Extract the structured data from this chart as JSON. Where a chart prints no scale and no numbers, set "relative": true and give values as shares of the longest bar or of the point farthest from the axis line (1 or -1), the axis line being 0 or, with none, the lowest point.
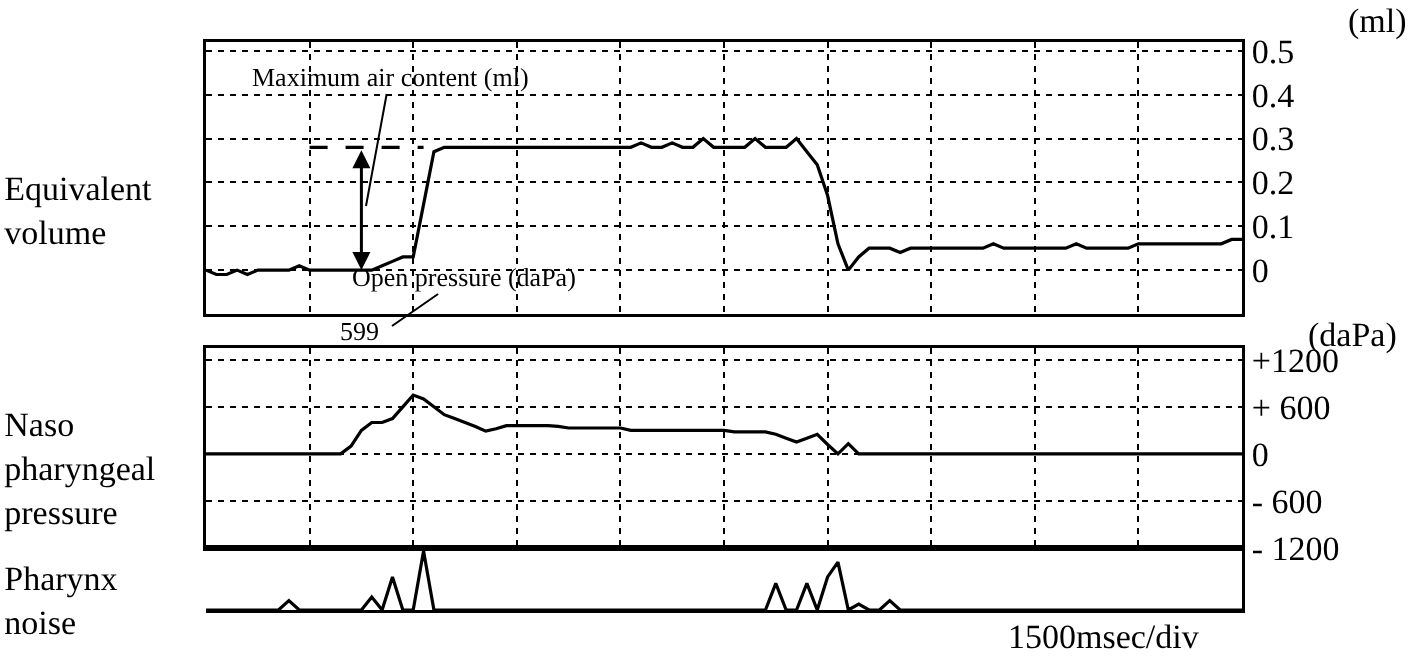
{
  "chart_data": [
    {
      "type": "line",
      "title": "Equivalent volume",
      "ylabel": "(ml)",
      "categories": [
        null,
        null,
        null,
        null,
        null,
        null,
        null,
        null,
        null,
        null,
        null,
        null,
        null,
        null,
        null,
        null,
        null,
        null,
        null,
        null,
        null,
        null,
        null,
        null,
        null,
        null,
        null,
        null,
        null,
        null,
        null,
        null,
        null,
        null,
        null,
        null,
        null,
        null,
        null,
        null,
        null,
        null,
        null,
        null,
        null,
        null,
        null,
        null,
        null,
        null,
        null,
        null,
        null,
        null,
        null,
        null,
        null,
        null,
        null,
        null,
        null,
        null,
        null,
        null,
        null,
        null,
        null,
        null,
        null,
        null,
        null,
        null,
        null,
        null,
        null,
        null,
        null,
        null,
        null,
        null,
        null,
        null,
        null,
        null,
        null,
        null,
        null,
        null,
        null,
        null,
        null,
        null,
        null,
        null,
        null,
        null,
        null,
        null,
        null,
        null,
        null
      ],
      "series": [
        {
          "color": "#000000",
          "values": [
            0,
            -0.01,
            -0.01,
            0,
            -0.01,
            0,
            0,
            0,
            0,
            0.01,
            0,
            0,
            0,
            0,
            0,
            0,
            0,
            0.01,
            0.02,
            0.03,
            0.03,
            0.15,
            0.27,
            0.28,
            0.28,
            0.28,
            0.28,
            0.28,
            0.28,
            0.28,
            0.28,
            0.28,
            0.28,
            0.28,
            0.28,
            0.28,
            0.28,
            0.28,
            0.28,
            0.28,
            0.28,
            0.28,
            0.29,
            0.28,
            0.28,
            0.29,
            0.28,
            0.28,
            0.3,
            0.28,
            0.28,
            0.28,
            0.28,
            0.3,
            0.28,
            0.28,
            0.28,
            0.3,
            0.27,
            0.24,
            0.17,
            0.06,
            0,
            0.03,
            0.05,
            0.05,
            0.05,
            0.04,
            0.05,
            0.05,
            0.05,
            0.05,
            0.05,
            0.05,
            0.05,
            0.05,
            0.06,
            0.05,
            0.05,
            0.05,
            0.05,
            0.05,
            0.05,
            0.05,
            0.06,
            0.05,
            0.05,
            0.05,
            0.05,
            0.05,
            0.06,
            0.06,
            0.06,
            0.06,
            0.06,
            0.06,
            0.06,
            0.06,
            0.06,
            0.07,
            0.07
          ]
        },
        {
          "type": "line",
          "color": "#000000",
          "line_style": "dashed",
          "values": [
            null,
            null,
            null,
            null,
            null,
            null,
            null,
            null,
            null,
            null,
            0.28,
            0.28,
            0.28,
            0.28,
            0.28,
            0.28,
            0.28,
            0.28,
            0.28,
            0.28,
            0.28,
            0.28,
            null,
            null,
            null,
            null,
            null,
            null,
            null,
            null,
            null,
            null,
            null,
            null,
            null,
            null,
            null,
            null,
            null,
            null,
            null,
            null,
            null,
            null,
            null,
            null,
            null,
            null,
            null,
            null,
            null,
            null,
            null,
            null,
            null,
            null,
            null,
            null,
            null,
            null,
            null,
            null,
            null,
            null,
            null,
            null,
            null,
            null,
            null,
            null,
            null,
            null,
            null,
            null,
            null,
            null,
            null,
            null,
            null,
            null,
            null,
            null,
            null,
            null,
            null,
            null,
            null,
            null,
            null,
            null,
            null,
            null,
            null,
            null,
            null,
            null,
            null,
            null,
            null,
            null,
            null
          ]
        }
      ],
      "ylim": [
        -0.1,
        0.52
      ],
      "yticks": [
        0,
        0.1,
        0.2,
        0.3,
        0.4,
        0.5
      ],
      "grid": true,
      "tick_labels": "y",
      "annotations": [
        "Maximum air content (ml)",
        "Open pressure (daPa)"
      ]
    },
    {
      "type": "line",
      "title": "Naso pharyngeal pressure",
      "ylabel": "(daPa)",
      "categories": [
        null,
        null,
        null,
        null,
        null,
        null,
        null,
        null,
        null,
        null,
        null,
        null,
        null,
        null,
        null,
        null,
        null,
        null,
        null,
        null,
        null,
        null,
        null,
        null,
        null,
        null,
        null,
        null,
        null,
        null,
        null,
        null,
        null,
        null,
        null,
        null,
        null,
        null,
        null,
        null,
        null,
        null,
        null,
        null,
        null,
        null,
        null,
        null,
        null,
        null,
        null,
        null,
        null,
        null,
        null,
        null,
        null,
        null,
        null,
        null,
        null,
        null,
        null,
        null,
        null,
        null,
        null,
        null,
        null,
        null,
        null,
        null,
        null,
        null,
        null,
        null,
        null,
        null,
        null,
        null,
        null,
        null,
        null,
        null,
        null,
        null,
        null,
        null,
        null,
        null,
        null,
        null,
        null,
        null,
        null,
        null,
        null,
        null,
        null,
        null,
        null
      ],
      "series": [
        {
          "color": "#000000",
          "values": [
            0,
            0,
            0,
            0,
            0,
            0,
            0,
            0,
            0,
            0,
            0,
            0,
            0,
            0,
            100,
            300,
            400,
            400,
            450,
            600,
            750,
            700,
            600,
            500,
            450,
            400,
            350,
            290,
            320,
            360,
            360,
            360,
            360,
            360,
            350,
            330,
            330,
            330,
            330,
            330,
            330,
            300,
            300,
            300,
            300,
            300,
            300,
            300,
            300,
            300,
            300,
            280,
            280,
            280,
            280,
            250,
            200,
            150,
            200,
            250,
            120,
            0,
            130,
            0,
            0,
            0,
            0,
            0,
            0,
            0,
            0,
            0,
            0,
            0,
            0,
            0,
            0,
            0,
            0,
            0,
            0,
            0,
            0,
            0,
            0,
            0,
            0,
            0,
            0,
            0,
            0,
            0,
            0,
            0,
            0,
            0,
            0,
            0,
            0,
            0,
            0
          ]
        }
      ],
      "ylim": [
        -1200,
        1350
      ],
      "yticks": [
        {
          "value": 1200,
          "label": "+1200"
        },
        {
          "value": 600,
          "label": "+ 600"
        },
        0,
        {
          "value": -600,
          "label": "- 600"
        },
        {
          "value": -1200,
          "label": "- 1200"
        }
      ],
      "grid": true,
      "tick_labels": "y",
      "annotations": [
        "599"
      ]
    },
    {
      "type": "line",
      "title": "Pharynx noise",
      "relative": true,
      "tick_labels": false,
      "categories": [
        null,
        null,
        null,
        null,
        null,
        null,
        null,
        null,
        null,
        null,
        null,
        null,
        null,
        null,
        null,
        null,
        null,
        null,
        null,
        null,
        null,
        null,
        null,
        null,
        null,
        null,
        null,
        null,
        null,
        null,
        null,
        null,
        null,
        null,
        null,
        null,
        null,
        null,
        null,
        null,
        null,
        null,
        null,
        null,
        null,
        null,
        null,
        null,
        null,
        null,
        null,
        null,
        null,
        null,
        null,
        null,
        null,
        null,
        null,
        null,
        null,
        null,
        null,
        null,
        null,
        null,
        null,
        null,
        null,
        null,
        null,
        null,
        null,
        null,
        null,
        null,
        null,
        null,
        null,
        null,
        null,
        null,
        null,
        null,
        null,
        null,
        null,
        null,
        null,
        null,
        null,
        null,
        null,
        null,
        null,
        null,
        null,
        null,
        null,
        null,
        null
      ],
      "series": [
        {
          "color": "#000000",
          "values": [
            0,
            0,
            0,
            0,
            0,
            0,
            0,
            0,
            0.16,
            0,
            0,
            0,
            0,
            0,
            0,
            0,
            0.22,
            0,
            0.56,
            0,
            0,
            1,
            0,
            0,
            0,
            0,
            0,
            0,
            0,
            0,
            0,
            0,
            0,
            0,
            0,
            0,
            0,
            0,
            0,
            0,
            0,
            0,
            0,
            0,
            0,
            0,
            0,
            0,
            0,
            0,
            0,
            0,
            0,
            0,
            0,
            0.45,
            0,
            0,
            0.45,
            0,
            0.56,
            0.81,
            0,
            0.1,
            0,
            0,
            0.16,
            0,
            0,
            0,
            0,
            0,
            0,
            0,
            0,
            0,
            0,
            0,
            0,
            0,
            0,
            0,
            0,
            0,
            0,
            0,
            0,
            0,
            0,
            0,
            0,
            0,
            0,
            0,
            0,
            0,
            0,
            0,
            0,
            0,
            0
          ]
        }
      ],
      "annotations": [
        "1500msec/div"
      ]
    }
  ]
}
